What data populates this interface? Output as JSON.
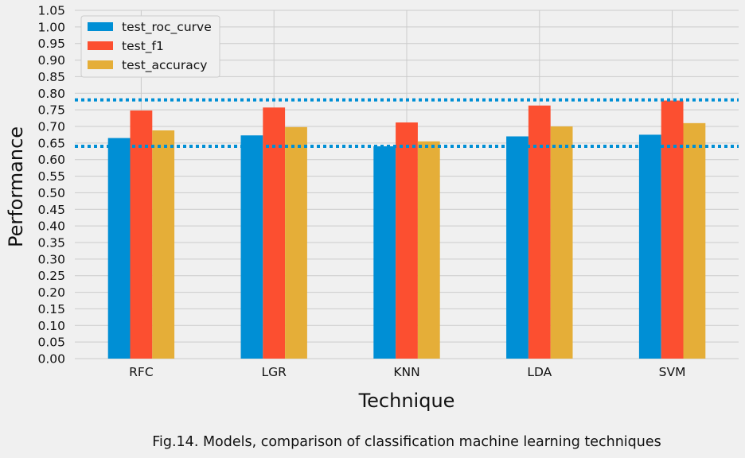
{
  "caption": "Fig.14. Models, comparison of classification machine learning techniques",
  "chart_data": {
    "type": "bar",
    "xlabel": "Technique",
    "ylabel": "Performance",
    "ylim": [
      0,
      1.05
    ],
    "categories": [
      "RFC",
      "LGR",
      "KNN",
      "LDA",
      "SVM"
    ],
    "series": [
      {
        "name": "test_roc_curve",
        "color": "#008fd5",
        "values": [
          0.665,
          0.673,
          0.64,
          0.67,
          0.675
        ]
      },
      {
        "name": "test_f1",
        "color": "#fc4f30",
        "values": [
          0.748,
          0.757,
          0.712,
          0.763,
          0.778
        ]
      },
      {
        "name": "test_accuracy",
        "color": "#e5ae38",
        "values": [
          0.688,
          0.698,
          0.655,
          0.7,
          0.71
        ]
      }
    ],
    "reference_lines": [
      {
        "value": 0.78,
        "style": "dotted",
        "color": "#008fd5"
      },
      {
        "value": 0.64,
        "style": "dotted",
        "color": "#008fd5"
      }
    ],
    "y_ticks": [
      "0.00",
      "0.05",
      "0.10",
      "0.15",
      "0.20",
      "0.25",
      "0.30",
      "0.35",
      "0.40",
      "0.45",
      "0.50",
      "0.55",
      "0.60",
      "0.65",
      "0.70",
      "0.75",
      "0.80",
      "0.85",
      "0.90",
      "0.95",
      "1.00",
      "1.05"
    ],
    "grid": true,
    "legend_position": "top-left"
  }
}
